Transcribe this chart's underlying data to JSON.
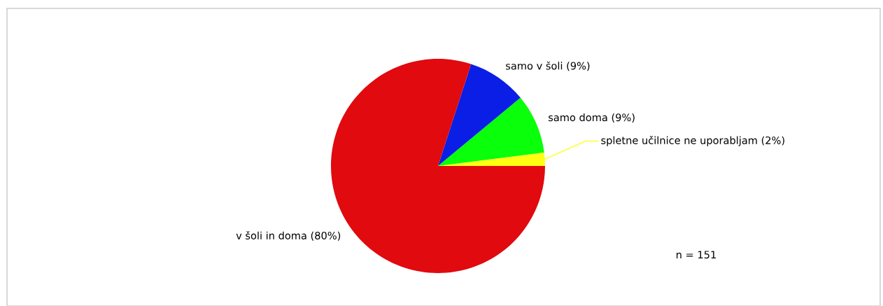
{
  "chart_data": {
    "type": "pie",
    "categories": [
      "spletne učilnice ne uporabljam (2%)",
      "samo doma (9%)",
      "samo v šoli (9%)",
      "v šoli in doma (80%)"
    ],
    "values": [
      2,
      9,
      9,
      80
    ],
    "colors": [
      "#ffff14",
      "#0aff0a",
      "#0a1ee6",
      "#e00a0f"
    ],
    "annotations": [
      "n = 151"
    ],
    "legend": false
  }
}
